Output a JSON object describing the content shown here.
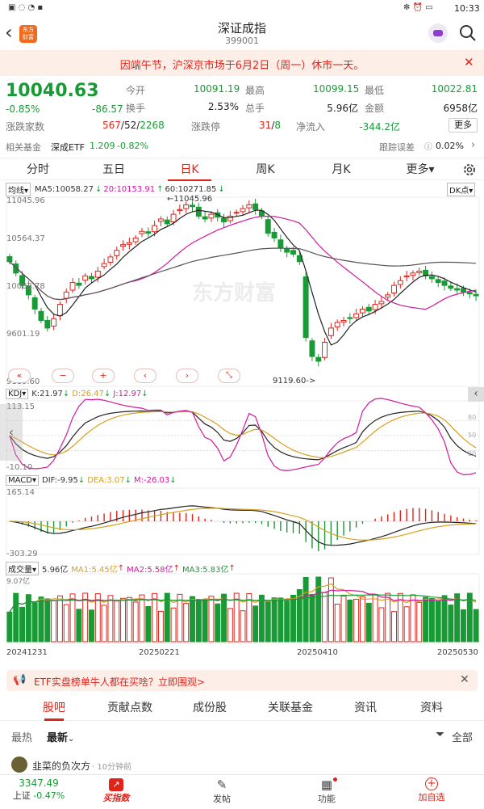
{
  "status": {
    "time": "10:33"
  },
  "header": {
    "title": "深证成指",
    "code": "399001",
    "logo_text": "东方财富"
  },
  "notice": {
    "text": "因端午节，沪深京市场于6月2日（周一）休市一天。"
  },
  "quote": {
    "price": "10040.63",
    "change_pct": "-0.85%",
    "change": "-86.57",
    "open_label": "今开",
    "open": "10091.19",
    "high_label": "最高",
    "high": "10099.15",
    "low_label": "最低",
    "low": "10022.81",
    "turnover_label": "换手",
    "turnover": "2.53%",
    "total_hands_label": "总手",
    "total_hands": "5.96亿",
    "amount_label": "金额",
    "amount": "6958亿",
    "updown_label": "涨跌家数",
    "up": "567",
    "flat": "52",
    "down": "2268",
    "limit_label": "涨跌停",
    "limit_up": "31",
    "limit_down": "8",
    "netflow_label": "净流入",
    "netflow": "-344.2亿",
    "more_label": "更多"
  },
  "fund": {
    "label": "相关基金",
    "etf": "深成ETF",
    "etf_price": "1.209",
    "etf_pct": "-0.82%",
    "track_label": "跟踪误差",
    "track_value": "0.02%"
  },
  "tabs": [
    "分时",
    "五日",
    "日K",
    "周K",
    "月K",
    "更多"
  ],
  "main_chart": {
    "ma_label": "均线",
    "ma5": "MA5:10058.27",
    "ma20": "20:10153.91",
    "ma60": "60:10271.85",
    "dk_label": "DK点",
    "y_top": "11045.96",
    "y_mid1": "10564.37",
    "y_mid2": "10082.78",
    "y_low": "9601.19",
    "y_bottom": "9119.60",
    "high_annot": "11045.96",
    "low_annot": "9119.60",
    "watermark": "东方财富"
  },
  "kdj": {
    "label": "KDJ",
    "k": "K:21.97",
    "d": "D:26.47",
    "j": "J:12.97",
    "y_top": "113.15",
    "y_bottom": "-10.10",
    "l80": "80",
    "l50": "50",
    "l20": "20"
  },
  "macd": {
    "label": "MACD",
    "dif": "DIF:-9.95",
    "dea": "DEA:3.07",
    "m": "M:-26.03",
    "y_top": "165.14",
    "y_bottom": "-303.29"
  },
  "volume": {
    "label": "成交量",
    "total": "5.96亿",
    "ma1": "MA1:5.45亿",
    "ma2": "MA2:5.58亿",
    "ma3": "MA3:5.83亿",
    "y_top": "9.07亿"
  },
  "dates": [
    "20241231",
    "20250221",
    "20250410",
    "20250530"
  ],
  "banner": {
    "text": "ETF实盘榜单牛人都在买啥？立即围观>"
  },
  "subtabs": [
    "股吧",
    "贡献点数",
    "成份股",
    "关联基金",
    "资讯",
    "资料"
  ],
  "filter": {
    "hot": "最热",
    "latest": "最新",
    "all": "全部"
  },
  "post": {
    "user": "韭菜的负次方",
    "time": "· 10分钟前"
  },
  "bottom": {
    "index_value": "3347.49",
    "index_name": "上证",
    "index_pct": "-0.47%",
    "buy": "买指数",
    "post": "发帖",
    "func": "功能",
    "add": "加自选"
  },
  "chart_data": {
    "type": "candlestick",
    "title": "深证成指 日K",
    "ylim": [
      9119.6,
      11045.96
    ],
    "x_labels": [
      "20241231",
      "20250221",
      "20250410",
      "20250530"
    ],
    "close_series": [
      10400,
      10280,
      10150,
      10050,
      9900,
      9780,
      9700,
      9800,
      9950,
      10080,
      10180,
      10150,
      10250,
      10220,
      10300,
      10380,
      10450,
      10520,
      10580,
      10600,
      10650,
      10720,
      10700,
      10780,
      10850,
      10800,
      10900,
      10950,
      11000,
      10980,
      10880,
      10850,
      10900,
      10870,
      10820,
      10880,
      10920,
      10960,
      11000,
      10950,
      10880,
      10700,
      10650,
      10550,
      10500,
      10480,
      10400,
      9600,
      9400,
      9350,
      9550,
      9700,
      9760,
      9780,
      9800,
      9850,
      9900,
      9880,
      9950,
      9980,
      10050,
      10150,
      10200,
      10250,
      10280,
      10300,
      10250,
      10220,
      10180,
      10150,
      10120,
      10100,
      10080,
      10060,
      10040
    ],
    "ma5_last": 10058.27,
    "ma20_last": 10153.91,
    "ma60_last": 10271.85
  }
}
